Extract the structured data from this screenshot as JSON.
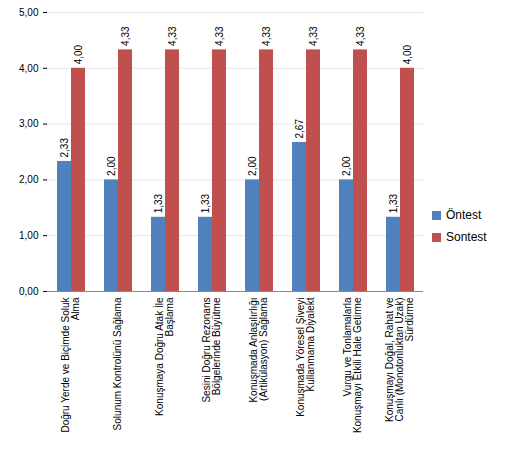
{
  "chart_data": {
    "type": "bar",
    "categories": [
      "Doğru Yerde ve Biçimde Soluk Alma",
      "Solunum Kontrolünü Sağlama",
      "Konuşmaya Doğru Atak İle Başlama",
      "Sesini Doğru Rezonans Bölgelerinde Büyütme",
      "Konuşmada Anlaşılırlığı (Artikülasyon) Sağlama",
      "Konuşmada Yöresel Şiveyi Kullanmama Diyalekt",
      "Vurgu ve Tonlamalarla Konuşmayı Etkili Hale Getirme",
      "Konuşmayı Doğal, Rahat ve Canlı (Monotonluktan Uzak) Sürdürme"
    ],
    "series": [
      {
        "name": "Öntest",
        "color": "#4f81bd",
        "values": [
          2.33,
          2.0,
          1.33,
          1.33,
          2.0,
          2.67,
          2.0,
          1.33
        ],
        "value_labels": [
          "2,33",
          "2,00",
          "1,33",
          "1,33",
          "2,00",
          "2,67",
          "2,00",
          "1,33"
        ]
      },
      {
        "name": "Sontest",
        "color": "#c0504d",
        "values": [
          4.0,
          4.33,
          4.33,
          4.33,
          4.33,
          4.33,
          4.33,
          4.0
        ],
        "value_labels": [
          "4,00",
          "4,33",
          "4,33",
          "4,33",
          "4,33",
          "4,33",
          "4,33",
          "4,00"
        ]
      }
    ],
    "ylim": [
      0,
      5
    ],
    "yticks": [
      {
        "value": 0,
        "label": "0,00"
      },
      {
        "value": 1,
        "label": "1,00"
      },
      {
        "value": 2,
        "label": "2,00"
      },
      {
        "value": 3,
        "label": "3,00"
      },
      {
        "value": 4,
        "label": "4,00"
      },
      {
        "value": 5,
        "label": "5,00"
      }
    ],
    "grid": true,
    "data_labels": true,
    "legend": "right"
  }
}
